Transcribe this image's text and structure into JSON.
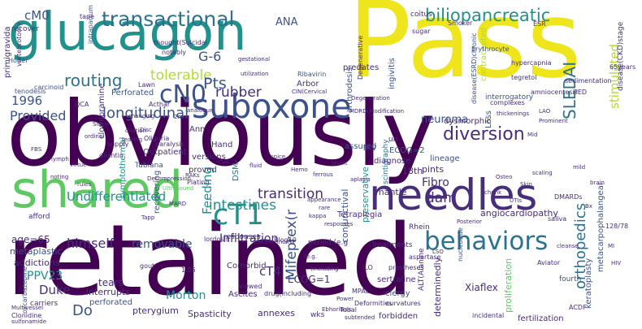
{
  "palette": {
    "yellow": "#efe51c",
    "lime": "#b0dd2f",
    "green": "#5ec962",
    "teal": "#21918c",
    "steel": "#2c728e",
    "navy": "#3b528b",
    "indigo": "#472d7b",
    "purple": "#440154",
    "background": "#ffffff"
  },
  "words": {
    "w001": "obviously",
    "w002": "retained",
    "w003": "Pass",
    "w004": "glucagon",
    "w005": "shared",
    "w006": "needles",
    "w007": "suboxone",
    "w008": "behaviors",
    "w009": "transactional",
    "w010": "biliopancreatic",
    "w011": "cN0",
    "w012": "cT1",
    "w013": "routing",
    "w014": "tolerable",
    "w015": "rubber",
    "w016": "Pts",
    "w017": "longitudinal",
    "w018": "1996",
    "w019": "Provided",
    "w020": "SLEDAI",
    "w021": "diversion",
    "w022": "orthopedics",
    "w023": "transition",
    "w024": "intestines",
    "w025": "Undifferentiated",
    "w026": "dam",
    "w027": "himself",
    "w028": "removable",
    "w029": "Infiltration",
    "w030": "PPV23",
    "w031": "Duke",
    "w032": "Morton",
    "w033": "ECOG=1",
    "w034": "cT4",
    "w035": "Mifeprex(r",
    "w036": "Feeding",
    "w037": "Fibro",
    "w038": "neuroma",
    "w039": "stimulated",
    "w040": "G-6",
    "w041": "ANA",
    "w042": "cM0",
    "w043": "Do",
    "w044": "angiocardiopathy",
    "w045": "Xiaflex",
    "w046": "age=65",
    "w047": "metaplastic",
    "w048": "addictions",
    "w049": "tears",
    "w050": "interrupts",
    "w051": "perforated",
    "w052": "pterygium",
    "w053": "Spasticity",
    "w054": "annexes",
    "w055": "clergy",
    "w056": "mantle",
    "w057": "18th",
    "w058": "pints",
    "w059": "Tetraplegia",
    "w060": "Ascites",
    "w061": "Comorbid",
    "w062": "forbidden",
    "w063": "fertilization",
    "w064": "Treatments",
    "w065": "sertraline",
    "w066": "determinedly",
    "w067": "proliferation",
    "w068": "keratoplasty",
    "w069": "fourth",
    "w070": "ECOG=2",
    "w071": "diagnose",
    "w072": "lineage",
    "w073": "assured",
    "w074": "preservative",
    "w075": "conjunctival",
    "w076": "Outpatient",
    "w077": "versions",
    "w078": "proved",
    "w079": "Hand",
    "w080": "DSM-",
    "w081": "Ann",
    "w082": "Perforated",
    "w083": "Arbor",
    "w084": "predates",
    "w085": "arthrodesis",
    "w086": "ingivitis",
    "w087": "contracepted",
    "w088": "interrogatory",
    "w089": "dysmorphic",
    "w090": "metacarpophalangeal",
    "w091": "Rhein",
    "w092": "symptothermal",
    "w093": "recovering",
    "w094": "Tubiana",
    "w095": "primigravida",
    "w096": "recover",
    "w097": "carriers",
    "w098": "responses",
    "w099": "coitus",
    "w100": "Smoker",
    "w101": "hypercapnia",
    "w102": "tegretol",
    "w103": "PED",
    "w104": "sugar",
    "w105": "ESR",
    "w106": "Erythrocyte",
    "w107": "thought(Suicidal",
    "w108": "notably",
    "w109": "Holter",
    "w110": "vertebrotomy",
    "w111": "carcinoid",
    "w112": "tenodesis",
    "w113": "Acthar",
    "w114": "clomipramine",
    "w115": "QCA",
    "w116": "wks",
    "w117": "scintigraphy",
    "w118": "Loss",
    "w119": "complexes",
    "w120": "responses",
    "w121": "gout",
    "w122": "incidental",
    "w123": "curvatures",
    "w124": "prostheses",
    "w125": "Aviator",
    "w126": "Degenerative",
    "w127": "Oliguria",
    "w128": "paralysis",
    "w129": "supply",
    "w130": "dilantin",
    "w131": "afford",
    "w132": "lordosis",
    "w133": "saliva",
    "w134": "DMARDs",
    "w135": "65years",
    "w136": "disease(ESRD)chronic",
    "w137": "disease(CKD)stage",
    "w138": "Clonidine",
    "w139": "sulfonamide",
    "w140": "Degeneration",
    "w141": "Blog10",
    "w142": "MPAL",
    "w143": "Tubal",
    "w144": "Ebhorionic",
    "w145": "oxcarbazepine",
    "w146": "1.05",
    "w147": "viewed",
    "w148": "ALT(Alanine",
    "w149": "ILO",
    "w150": "nucleotide",
    "w151": "Deformities",
    "w152": "appearance",
    "w153": "Plating",
    "w154": "rare",
    "w155": "Decompression",
    "w156": "128/78",
    "w157": "Ribavirin",
    "w158": "sedimentation",
    "w159": "Lawn",
    "w160": "tape",
    "w161": "intrapartum",
    "w162": "aspartase",
    "w163": "MDRD(Modification",
    "w164": "Power",
    "w165": "ACDF",
    "w166": "amniocentesis",
    "w167": "utilization",
    "w168": "CIN(Cervical",
    "w169": "gestational",
    "w170": "changing",
    "w171": "2mos",
    "w172": "Disc",
    "w173": "RAKs",
    "w174": "MARD",
    "w175": "Tapp",
    "w176": "Multivessel",
    "w177": "analogue",
    "w178": "Ultrasound",
    "w179": "kappa",
    "w180": "CIS(Carcinoma",
    "w181": "LAO",
    "w182": "(e.g.",
    "w183": "(including",
    "w184": "dilation",
    "w185": "Prominent",
    "w186": "thickenings",
    "w187": "Mid",
    "w188": "LSO",
    "w189": "period.(e.g",
    "w190": "drug(including",
    "w191": "BKV",
    "w192": "un",
    "w193": "subtended",
    "w194": "Sickle",
    "w195": "ordinal",
    "w196": "tearing",
    "w197": "CVA",
    "w198": "fluid",
    "w199": "spice",
    "w200": "Hemo",
    "w201": "ferrous",
    "w202": "shunt",
    "w203": "aplasia",
    "w204": "noting",
    "w205": "rules",
    "w206": "FBS",
    "w207": "lymph",
    "w208": "virtue",
    "w209": "Osteo",
    "w210": "Skin",
    "w211": "scaling",
    "w212": "mild",
    "w213": "brain",
    "w214": "chunk",
    "w215": "UTIs",
    "w216": "Posterior",
    "w217": "cleanse",
    "w218": "Bx",
    "w219": "MI",
    "w220": "HIV"
  }
}
